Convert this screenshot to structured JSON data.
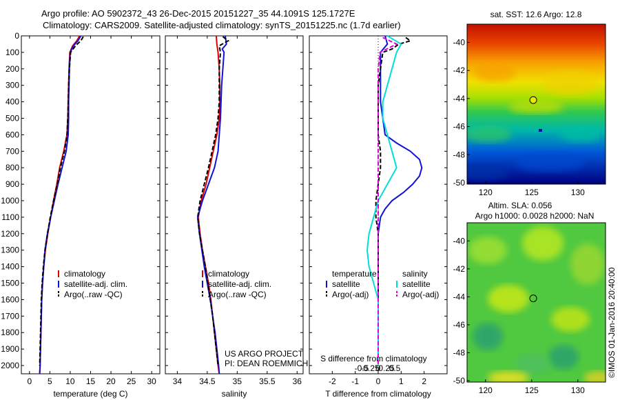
{
  "header": {
    "title_line1": "Argo profile: AO 5902372_43 26-Dec-2015 20151227_35 44.1091S 125.1727E",
    "title_line2": "Climatology: CARS2009. Satellite-adjusted climatology: synTS_20151225.nc (1.7d earlier)"
  },
  "colors": {
    "climatology": "#dd0000",
    "satellite": "#1010dd",
    "argo": "#000000",
    "sat_salinity": "#00dddd",
    "argo_adj_salinity": "#dd00dd"
  },
  "chart_data": [
    {
      "type": "line",
      "id": "temperature",
      "xlabel": "temperature (deg C)",
      "xlim": [
        -2,
        32
      ],
      "xticks": [
        0,
        5,
        10,
        15,
        20,
        25,
        30
      ],
      "ylim": [
        2050,
        0
      ],
      "yticks": [
        0,
        100,
        200,
        300,
        400,
        500,
        600,
        700,
        800,
        900,
        1000,
        1100,
        1200,
        1300,
        1400,
        1500,
        1600,
        1700,
        1800,
        1900,
        2000
      ],
      "legend": [
        "climatology",
        "satellite-adj. clim.",
        "Argo(..raw -QC)"
      ],
      "series": [
        {
          "name": "climatology",
          "depth": [
            0,
            30,
            60,
            100,
            200,
            300,
            400,
            500,
            600,
            700,
            800,
            900,
            1000,
            1100,
            1200,
            1300,
            1400,
            1500,
            1600,
            1700,
            1800,
            1900,
            2000,
            2050
          ],
          "values": [
            12.3,
            11.6,
            10.6,
            9.9,
            9.7,
            9.6,
            9.5,
            9.4,
            9.2,
            8.4,
            7.4,
            6.7,
            5.9,
            5.2,
            4.5,
            3.9,
            3.5,
            3.2,
            3.0,
            2.9,
            2.8,
            2.7,
            2.6,
            2.5
          ]
        },
        {
          "name": "satellite-adj. clim.",
          "depth": [
            0,
            30,
            60,
            100,
            200,
            300,
            400,
            500,
            600,
            700,
            800,
            900,
            1000,
            1100,
            1200,
            1300,
            1400,
            1500,
            1600,
            1700,
            1800,
            1900,
            2000,
            2050
          ],
          "values": [
            12.6,
            11.9,
            10.8,
            10.0,
            9.8,
            9.7,
            9.6,
            9.6,
            9.5,
            9.0,
            8.0,
            7.0,
            6.1,
            5.2,
            4.4,
            3.8,
            3.5,
            3.2,
            3.0,
            2.9,
            2.8,
            2.7,
            2.6,
            2.5
          ]
        },
        {
          "name": "Argo(..raw -QC)",
          "depth": [
            5,
            30,
            60,
            100,
            200,
            300,
            400,
            500,
            600,
            700,
            800,
            900,
            1000,
            1100,
            1200,
            1300,
            1400,
            1500,
            1600,
            1700,
            1800,
            1900,
            2000
          ],
          "values": [
            13.2,
            12.6,
            11.3,
            10.1,
            9.8,
            9.6,
            9.5,
            9.4,
            9.2,
            8.6,
            7.6,
            6.8,
            5.9,
            5.1,
            4.4,
            3.8,
            3.4,
            3.1,
            2.9,
            2.8,
            2.7,
            2.6,
            2.5
          ]
        }
      ]
    },
    {
      "type": "line",
      "id": "salinity",
      "xlabel": "salinity",
      "xlim": [
        33.8,
        36.1
      ],
      "xticks": [
        34,
        34.5,
        35,
        35.5,
        36
      ],
      "ylim": [
        2050,
        0
      ],
      "legend": [
        "climatology",
        "satellite-adj. clim.",
        "Argo(..raw -QC)"
      ],
      "annotation": [
        "US ARGO PROJECT",
        "PI: DEAN ROEMMICH"
      ],
      "series": [
        {
          "name": "climatology",
          "depth": [
            0,
            50,
            100,
            200,
            300,
            400,
            500,
            600,
            700,
            800,
            900,
            1000,
            1100,
            1200,
            1300,
            1400,
            1500,
            1600,
            1700,
            1800,
            1900,
            2000,
            2050
          ],
          "values": [
            34.65,
            34.66,
            34.68,
            34.7,
            34.71,
            34.71,
            34.7,
            34.66,
            34.6,
            34.54,
            34.48,
            34.4,
            34.35,
            34.38,
            34.42,
            34.47,
            34.52,
            34.56,
            34.59,
            34.62,
            34.65,
            34.68,
            34.7
          ]
        },
        {
          "name": "satellite-adj. clim.",
          "depth": [
            0,
            50,
            80,
            100,
            200,
            300,
            400,
            500,
            600,
            700,
            800,
            900,
            1000,
            1100,
            1200,
            1300,
            1400,
            1500,
            1600,
            1700,
            1800,
            1900,
            2000,
            2050
          ],
          "values": [
            34.8,
            34.82,
            34.75,
            34.78,
            34.76,
            34.74,
            34.73,
            34.72,
            34.7,
            34.68,
            34.62,
            34.52,
            34.42,
            34.34,
            34.37,
            34.41,
            34.45,
            34.5,
            34.55,
            34.59,
            34.63,
            34.66,
            34.69,
            34.7
          ]
        },
        {
          "name": "Argo(..raw -QC)",
          "depth": [
            5,
            30,
            60,
            100,
            200,
            300,
            400,
            500,
            600,
            700,
            800,
            900,
            1000,
            1100,
            1200,
            1300,
            1400,
            1500,
            1600,
            1700,
            1800,
            1900,
            2000
          ],
          "values": [
            34.76,
            34.85,
            34.7,
            34.72,
            34.7,
            34.7,
            34.7,
            34.68,
            34.64,
            34.58,
            34.52,
            34.45,
            34.38,
            34.34,
            34.37,
            34.42,
            34.47,
            34.51,
            34.55,
            34.59,
            34.62,
            34.65,
            34.68
          ]
        }
      ]
    },
    {
      "type": "line",
      "id": "differences",
      "xlabel": "T difference from climatology",
      "xlabel_top": "S difference from climatology",
      "xlim": [
        -3,
        3
      ],
      "xticks_T": [
        -2,
        -1,
        0,
        1,
        2
      ],
      "xticks_S": [
        "-0.5",
        "-0.25",
        "0",
        "0.25",
        "0.5"
      ],
      "ylim": [
        2050,
        0
      ],
      "legend_temperature": [
        "temperature",
        "satellite",
        "Argo(-adj)"
      ],
      "legend_salinity": [
        "salinity",
        "satellite",
        "Argo(-adj)"
      ],
      "series": [
        {
          "name": "temperature satellite",
          "depth": [
            0,
            50,
            100,
            200,
            300,
            400,
            500,
            600,
            650,
            700,
            750,
            800,
            850,
            900,
            950,
            1000,
            1050,
            1100,
            1150,
            1200
          ],
          "values": [
            0.3,
            0.4,
            0.1,
            0.1,
            0.1,
            0.1,
            0.2,
            0.3,
            0.8,
            1.4,
            1.8,
            1.9,
            1.8,
            1.5,
            1.1,
            0.6,
            0.3,
            0.1,
            0.05,
            0
          ]
        },
        {
          "name": "temperature Argo(-adj)",
          "depth": [
            10,
            30,
            50,
            80,
            100,
            200,
            300,
            400,
            500,
            600,
            700,
            800,
            900,
            1000,
            1100,
            1200,
            1300,
            1400,
            1500,
            1600,
            1700,
            1800,
            1900,
            2000
          ],
          "values": [
            1.2,
            1.4,
            0.9,
            0.6,
            0.2,
            0.1,
            0,
            0,
            0,
            0,
            0.1,
            0.1,
            0,
            -0.1,
            -0.1,
            0,
            0,
            0,
            0,
            0,
            0,
            0,
            0,
            0
          ]
        },
        {
          "name": "salinity satellite",
          "depth": [
            0,
            50,
            100,
            200,
            300,
            400,
            500,
            600,
            700,
            800,
            900,
            1000,
            1100,
            1200,
            1300,
            1400,
            1500,
            1600,
            1700,
            1800,
            1900,
            2000
          ],
          "values": [
            0.1,
            0.25,
            0.2,
            0.15,
            0.1,
            0.05,
            0.05,
            0.1,
            0.15,
            0.2,
            0.1,
            0,
            -0.05,
            -0.1,
            -0.12,
            -0.1,
            -0.05,
            0,
            0,
            0,
            0,
            0
          ]
        },
        {
          "name": "salinity Argo(-adj)",
          "depth": [
            10,
            50,
            100,
            200,
            300,
            400,
            500,
            600,
            700,
            800,
            900,
            1000,
            1100,
            1200,
            1300,
            1400,
            1500,
            1600,
            1700,
            1800,
            1900,
            2000
          ],
          "values": [
            0.05,
            0.2,
            0.02,
            0,
            0,
            0,
            0,
            0,
            0,
            0,
            0,
            0,
            0,
            0,
            0,
            0,
            0,
            0,
            0,
            0,
            0,
            0
          ]
        }
      ]
    },
    {
      "type": "heatmap",
      "id": "sst_map",
      "title": "sat. SST: 12.6 Argo: 12.8",
      "xticks": [
        120,
        125,
        130
      ],
      "yticks": [
        -40,
        -42,
        -44,
        -46,
        -48,
        -50
      ],
      "xlim": [
        118,
        133
      ],
      "ylim": [
        -50.1,
        -38.7
      ],
      "argo_position": [
        125.17,
        -44.11
      ]
    },
    {
      "type": "heatmap",
      "id": "sla_map",
      "title_line1": "Altim. SLA: 0.056",
      "title_line2": "Argo h1000: 0.0028 h2000: NaN",
      "xticks": [
        120,
        125,
        130
      ],
      "yticks": [
        -40,
        -42,
        -44,
        -46,
        -48,
        -50
      ],
      "xlim": [
        118,
        133
      ],
      "ylim": [
        -50.1,
        -38.7
      ],
      "argo_position": [
        125.17,
        -44.11
      ],
      "side_label": "©IMOS 01-Jan-2016 20:40:00"
    }
  ]
}
